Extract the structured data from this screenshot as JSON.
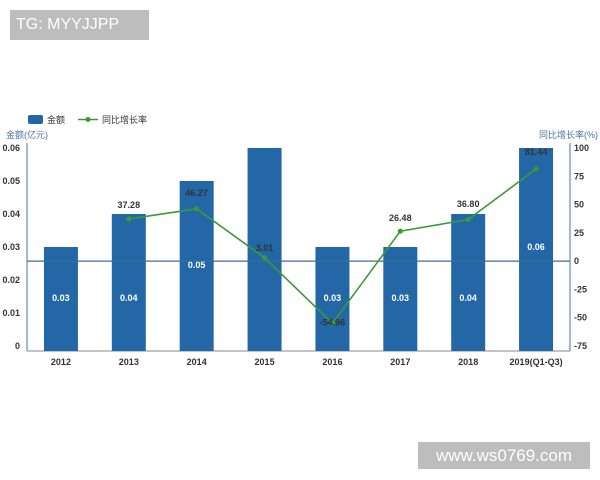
{
  "watermarks": {
    "top": "TG: MYYJJPP",
    "bottom": "www.ws0769.com"
  },
  "chart_data": {
    "type": "bar",
    "categories": [
      "2012",
      "2013",
      "2014",
      "2015",
      "2016",
      "2017",
      "2018",
      "2019(Q1-Q3)"
    ],
    "series": [
      {
        "name": "金额",
        "type": "bar",
        "axis": "left",
        "values": [
          0.03,
          0.04,
          0.05,
          0.06,
          0.03,
          0.03,
          0.04,
          0.06
        ],
        "labels": [
          "0.03",
          "0.04",
          "0.05",
          "",
          "0.03",
          "0.03",
          "0.04",
          "0.06"
        ]
      },
      {
        "name": "同比增长率",
        "type": "line",
        "axis": "right",
        "values": [
          null,
          37.28,
          46.27,
          3.01,
          -54.96,
          26.48,
          36.8,
          81.44
        ],
        "labels": [
          "",
          "37.28",
          "46.27",
          "3.01",
          "-54.96",
          "26.48",
          "36.80",
          "81.44"
        ]
      }
    ],
    "y_left": {
      "label": "金额(亿元)",
      "ticks": [
        "0",
        "0.01",
        "0.02",
        "0.03",
        "0.04",
        "0.05",
        "0.06"
      ],
      "range": [
        0,
        0.06
      ]
    },
    "y_right": {
      "label": "同比增长率(%)",
      "ticks": [
        "-75",
        "-50",
        "-25",
        "0",
        "25",
        "50",
        "75",
        "100"
      ],
      "range": [
        -75,
        100
      ]
    },
    "legend": "top-left",
    "colors": {
      "bar": "#2367a7",
      "line": "#3a9b35",
      "axis": "#4a73a8",
      "zero_line": "#3d6f9a"
    }
  }
}
